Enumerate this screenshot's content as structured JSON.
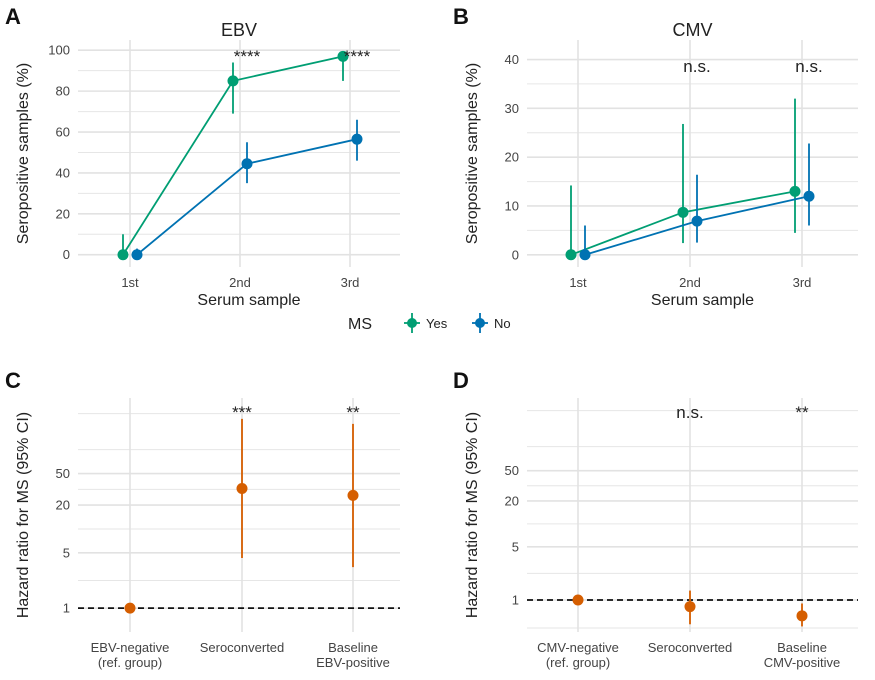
{
  "colors": {
    "yes": "#009e73",
    "no": "#0072b2",
    "hr": "#d55e00"
  },
  "legend": {
    "title": "MS",
    "items": [
      {
        "key": "yes",
        "label": "Yes"
      },
      {
        "key": "no",
        "label": "No"
      }
    ]
  },
  "chart_data": [
    {
      "panel": "A",
      "type": "line",
      "title": "EBV",
      "xlabel": "Serum sample",
      "ylabel": "Seropositive samples (%)",
      "categories": [
        "1st",
        "2nd",
        "3rd"
      ],
      "ylim": [
        -6,
        105
      ],
      "yticks": [
        0,
        20,
        40,
        60,
        80,
        100
      ],
      "significance": [
        "",
        "****",
        "****"
      ],
      "series": [
        {
          "name": "Yes",
          "key": "yes",
          "values": [
            0,
            85,
            97
          ],
          "lower": [
            0,
            69,
            85
          ],
          "upper": [
            10,
            94,
            99.5
          ]
        },
        {
          "name": "No",
          "key": "no",
          "values": [
            0,
            44.5,
            56.5
          ],
          "lower": [
            0,
            35,
            46
          ],
          "upper": [
            3,
            55,
            66
          ]
        }
      ]
    },
    {
      "panel": "B",
      "type": "line",
      "title": "CMV",
      "xlabel": "Serum sample",
      "ylabel": "Seropositive samples (%)",
      "categories": [
        "1st",
        "2nd",
        "3rd"
      ],
      "ylim": [
        -2.5,
        44
      ],
      "yticks": [
        0,
        10,
        20,
        30,
        40
      ],
      "significance": [
        "",
        "n.s.",
        "n.s."
      ],
      "series": [
        {
          "name": "Yes",
          "key": "yes",
          "values": [
            0,
            8.7,
            13
          ],
          "lower": [
            0,
            2.4,
            4.5
          ],
          "upper": [
            14.2,
            26.8,
            32
          ]
        },
        {
          "name": "No",
          "key": "no",
          "values": [
            0,
            6.9,
            12
          ],
          "lower": [
            0,
            2.5,
            6
          ],
          "upper": [
            6,
            16.4,
            22.8
          ]
        }
      ]
    },
    {
      "panel": "C",
      "type": "scatter",
      "scale": "log",
      "xlabel": "",
      "ylabel": "Hazard ratio for MS (95% CI)",
      "categories": [
        "EBV-negative\n(ref. group)",
        "Seroconverted",
        "Baseline\nEBV-positive"
      ],
      "yticks": [
        1,
        5,
        20,
        50
      ],
      "ylim": [
        0.5,
        450
      ],
      "reference_line": 1,
      "significance": [
        "",
        "***",
        "**"
      ],
      "series": [
        {
          "key": "hr",
          "values": [
            1,
            32.4,
            26.5
          ],
          "lower": [
            null,
            4.3,
            3.3
          ],
          "upper": [
            null,
            245,
            212
          ]
        }
      ]
    },
    {
      "panel": "D",
      "type": "scatter",
      "scale": "log",
      "xlabel": "",
      "ylabel": "Hazard ratio for MS (95% CI)",
      "categories": [
        "CMV-negative\n(ref. group)",
        "Seroconverted",
        "Baseline\nCMV-positive"
      ],
      "yticks": [
        1,
        5,
        20,
        50
      ],
      "ylim": [
        0.38,
        450
      ],
      "reference_line": 1,
      "significance": [
        "",
        "n.s.",
        "**"
      ],
      "series": [
        {
          "key": "hr",
          "values": [
            1,
            0.82,
            0.62
          ],
          "lower": [
            null,
            0.48,
            0.45
          ],
          "upper": [
            null,
            1.33,
            0.9
          ]
        }
      ]
    }
  ]
}
